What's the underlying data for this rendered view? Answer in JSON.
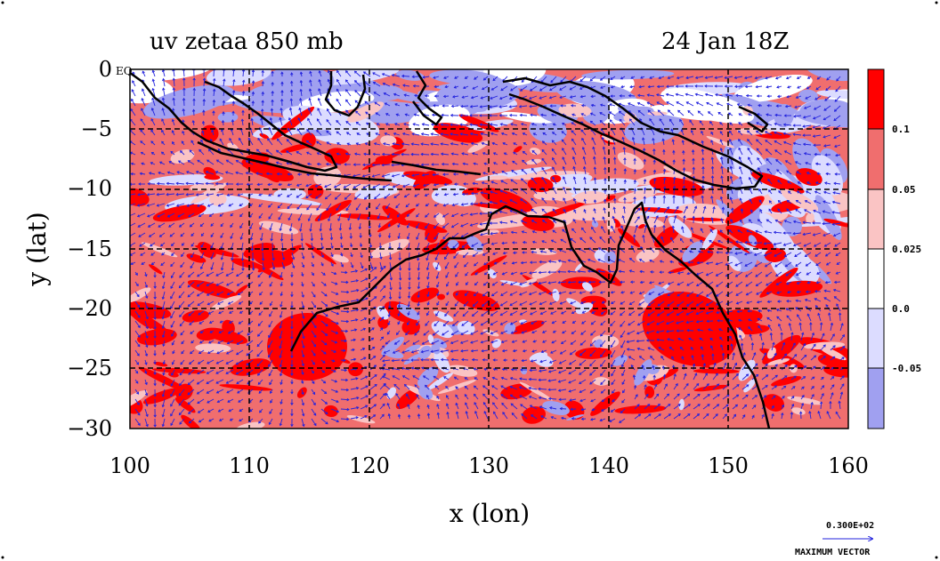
{
  "map": {
    "title": "uv zetaa 850 mb",
    "time": "24 Jan 18Z",
    "eq_label": "EQ",
    "xlabel": "x (lon)",
    "ylabel": "y (lat)",
    "lon_range": [
      100,
      160
    ],
    "lat_range": [
      -30,
      0
    ],
    "x_ticks": [
      "100",
      "110",
      "120",
      "130",
      "140",
      "150",
      "160"
    ],
    "y_ticks": [
      "0",
      "−5",
      "−10",
      "−15",
      "−20",
      "−25",
      "−30"
    ],
    "grid_lines": "dashed black every 10 degrees",
    "coastline_color": "#000000",
    "vector_color": "#2222dd",
    "colorbar": {
      "labels": [
        "0.1",
        "0.05",
        "0.025",
        "0.0",
        "-0.05"
      ],
      "levels": [
        -0.05,
        0.0,
        0.025,
        0.05,
        0.1
      ],
      "colors": [
        "#ff0000",
        "#f06e6e",
        "#fac4c4",
        "#ffffff",
        "#dcdcff",
        "#a0a0f0"
      ]
    },
    "vector_ref": {
      "value": "0.300E+02",
      "label": "MAXIMUM VECTOR"
    }
  }
}
